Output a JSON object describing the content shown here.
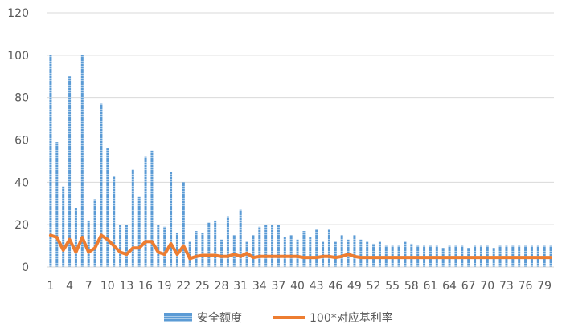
{
  "chart_data": {
    "type": "bar+line",
    "categories": [
      1,
      2,
      3,
      4,
      5,
      6,
      7,
      8,
      9,
      10,
      11,
      12,
      13,
      14,
      15,
      16,
      17,
      18,
      19,
      20,
      21,
      22,
      23,
      24,
      25,
      26,
      27,
      28,
      29,
      30,
      31,
      32,
      33,
      34,
      35,
      36,
      37,
      38,
      39,
      40,
      41,
      42,
      43,
      44,
      45,
      46,
      47,
      48,
      49,
      50,
      51,
      52,
      53,
      54,
      55,
      56,
      57,
      58,
      59,
      60,
      61,
      62,
      63,
      64,
      65,
      66,
      67,
      68,
      69,
      70,
      71,
      72,
      73,
      74,
      75,
      76,
      77,
      78,
      79,
      80
    ],
    "x_tick_labels": [
      "1",
      "4",
      "7",
      "10",
      "13",
      "16",
      "19",
      "22",
      "25",
      "28",
      "31",
      "34",
      "37",
      "40",
      "43",
      "46",
      "49",
      "52",
      "55",
      "58",
      "61",
      "64",
      "67",
      "70",
      "73",
      "76",
      "79"
    ],
    "ylim": [
      0,
      120
    ],
    "y_ticks": [
      "0",
      "20",
      "40",
      "60",
      "80",
      "100",
      "120"
    ],
    "series": [
      {
        "name": "安全额度",
        "type": "bar",
        "color": "#5b9bd5",
        "values": [
          100,
          59,
          38,
          90,
          28,
          100,
          22,
          32,
          77,
          56,
          43,
          20,
          20,
          46,
          33,
          52,
          55,
          20,
          19,
          45,
          16,
          40,
          12,
          17,
          16,
          21,
          22,
          13,
          24,
          15,
          27,
          12,
          15,
          19,
          20,
          20,
          20,
          14,
          15,
          13,
          17,
          14,
          18,
          12,
          18,
          12,
          15,
          13,
          15,
          13,
          12,
          11,
          12,
          10,
          10,
          10,
          12,
          11,
          10,
          10,
          10,
          10,
          9,
          10,
          10,
          10,
          9,
          10,
          10,
          10,
          9,
          10,
          10,
          10,
          10,
          10,
          10,
          10,
          10,
          10
        ]
      },
      {
        "name": "100*对应基利率",
        "type": "line",
        "color": "#ed7d31",
        "values": [
          15,
          14,
          8,
          13,
          7,
          14,
          7,
          9,
          15,
          13,
          10,
          7,
          6,
          9,
          9,
          12,
          12,
          7,
          6,
          11,
          6,
          10,
          4,
          5,
          5.5,
          5.5,
          5.5,
          5,
          5,
          6,
          5,
          6.5,
          4.5,
          5,
          5,
          5,
          5,
          5,
          5,
          5,
          4.5,
          4.5,
          4.5,
          5,
          5,
          4.5,
          5,
          6,
          5,
          4.5,
          4.5,
          4.5,
          4.5,
          4.5,
          4.5,
          4.5,
          4.5,
          4.5,
          4.5,
          4.5,
          4.5,
          4.5,
          4.5,
          4.5,
          4.5,
          4.5,
          4.5,
          4.5,
          4.5,
          4.5,
          4.5,
          4.5,
          4.5,
          4.5,
          4.5,
          4.5,
          4.5,
          4.5,
          4.5,
          4.5
        ]
      }
    ],
    "legend": [
      "安全额度",
      "100*对应基利率"
    ],
    "legend_position": "bottom",
    "grid": true,
    "title": "",
    "xlabel": "",
    "ylabel": ""
  }
}
